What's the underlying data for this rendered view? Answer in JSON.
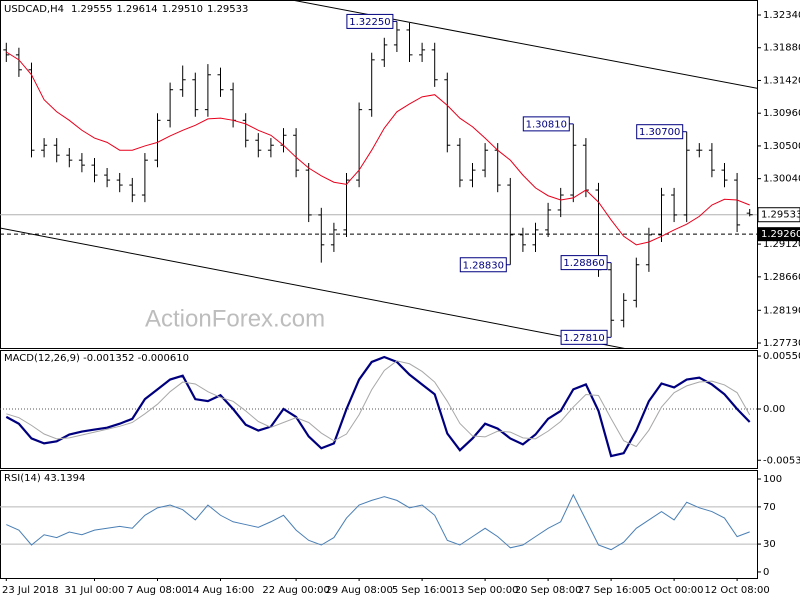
{
  "chart_data": [
    {
      "type": "ohlc",
      "title": "USDCAD,H4",
      "header_values": [
        "1.29555",
        "1.29614",
        "1.29510",
        "1.29533"
      ],
      "color": "#000000",
      "open": [
        1.3185,
        1.3178,
        1.3157,
        1.3044,
        1.3051,
        1.3037,
        1.303,
        1.3023,
        1.3009,
        1.3002,
        1.2995,
        1.2981,
        1.303,
        1.3086,
        1.3129,
        1.3143,
        1.3101,
        1.315,
        1.3129,
        1.3086,
        1.3058,
        1.3044,
        1.3051,
        1.3065,
        1.3016,
        1.2953,
        1.2911,
        1.2932,
        1.3002,
        1.3101,
        1.3171,
        1.3192,
        1.3213,
        1.3178,
        1.3185,
        1.3143,
        1.3051,
        1.3002,
        1.3016,
        1.3044,
        1.2995,
        1.2925,
        1.2911,
        1.2932,
        1.296,
        1.2981,
        1.3051,
        1.2988,
        1.2876,
        1.2805,
        1.2833,
        1.2883,
        1.2925,
        1.2981,
        1.2953,
        1.3044,
        1.3044,
        1.3016,
        1.3002,
        1.29555
      ],
      "high": [
        1.3195,
        1.3188,
        1.3167,
        1.3061,
        1.3061,
        1.3047,
        1.304,
        1.3033,
        1.3019,
        1.3012,
        1.3005,
        1.304,
        1.3096,
        1.3139,
        1.3163,
        1.3153,
        1.3165,
        1.316,
        1.3139,
        1.3096,
        1.3068,
        1.3061,
        1.3075,
        1.3075,
        1.3026,
        1.2963,
        1.2942,
        1.3012,
        1.3111,
        1.3181,
        1.3202,
        1.3225,
        1.3223,
        1.3195,
        1.3195,
        1.3153,
        1.3061,
        1.3026,
        1.3054,
        1.3054,
        1.3005,
        1.2935,
        1.2942,
        1.297,
        1.2991,
        1.3081,
        1.3061,
        1.2998,
        1.2886,
        1.2843,
        1.2893,
        1.2935,
        1.2991,
        1.2991,
        1.307,
        1.3054,
        1.3054,
        1.3026,
        1.3012,
        1.29614
      ],
      "low": [
        1.3168,
        1.3147,
        1.3034,
        1.3034,
        1.3027,
        1.302,
        1.3013,
        1.2999,
        1.2992,
        1.2985,
        1.2971,
        1.2971,
        1.302,
        1.3076,
        1.3119,
        1.3091,
        1.3091,
        1.3119,
        1.3076,
        1.3048,
        1.3034,
        1.3034,
        1.3041,
        1.3006,
        1.2943,
        1.2886,
        1.2901,
        1.2922,
        1.2992,
        1.3091,
        1.3161,
        1.3182,
        1.3168,
        1.3168,
        1.3133,
        1.3041,
        1.2992,
        1.2992,
        1.3006,
        1.2985,
        1.2883,
        1.2901,
        1.2901,
        1.2922,
        1.295,
        1.2971,
        1.2978,
        1.2866,
        1.2781,
        1.2795,
        1.2823,
        1.2873,
        1.2915,
        1.2943,
        1.2943,
        1.3034,
        1.3006,
        1.2992,
        1.2929,
        1.2951
      ],
      "close": [
        1.3178,
        1.3157,
        1.3044,
        1.3051,
        1.3037,
        1.303,
        1.3023,
        1.3009,
        1.3002,
        1.2995,
        1.2981,
        1.303,
        1.3086,
        1.3129,
        1.3143,
        1.3101,
        1.315,
        1.3129,
        1.3086,
        1.3058,
        1.3044,
        1.3051,
        1.3065,
        1.3016,
        1.2953,
        1.2911,
        1.2932,
        1.3002,
        1.3101,
        1.3171,
        1.3192,
        1.3213,
        1.3178,
        1.3185,
        1.3143,
        1.3051,
        1.3002,
        1.3016,
        1.3044,
        1.2995,
        1.2925,
        1.2911,
        1.2932,
        1.296,
        1.2981,
        1.3051,
        1.2988,
        1.2876,
        1.2805,
        1.2833,
        1.2883,
        1.2925,
        1.2981,
        1.2953,
        1.3044,
        1.3044,
        1.3016,
        1.3002,
        1.2939,
        1.29533
      ],
      "ma": {
        "color": "#e8001c",
        "values": [
          1.3182,
          1.3171,
          1.315,
          1.3115,
          1.3098,
          1.3086,
          1.3072,
          1.3061,
          1.3055,
          1.3044,
          1.3044,
          1.305,
          1.3055,
          1.3064,
          1.3072,
          1.3079,
          1.3088,
          1.3089,
          1.3086,
          1.3081,
          1.3072,
          1.3065,
          1.3051,
          1.3034,
          1.3019,
          1.3008,
          1.2999,
          1.2996,
          1.3016,
          1.3044,
          1.3075,
          1.3098,
          1.3109,
          1.3119,
          1.3122,
          1.3107,
          1.3089,
          1.3077,
          1.3061,
          1.3044,
          1.303,
          1.3009,
          1.2991,
          1.298,
          1.2974,
          1.2977,
          1.2988,
          1.2971,
          1.2946,
          1.2923,
          1.2911,
          1.2915,
          1.2923,
          1.2932,
          1.294,
          1.2951,
          1.2967,
          1.2975,
          1.2974,
          1.2967
        ]
      },
      "ylim": [
        1.2766,
        1.32551
      ],
      "yticks": [
        {
          "value": 1.3234,
          "label": "1.32340"
        },
        {
          "value": 1.3188,
          "label": "1.31880"
        },
        {
          "value": 1.3142,
          "label": "1.31420"
        },
        {
          "value": 1.3096,
          "label": "1.30960"
        },
        {
          "value": 1.305,
          "label": "1.30500"
        },
        {
          "value": 1.3004,
          "label": "1.30040"
        },
        {
          "value": 1.2912,
          "label": "1.29120"
        },
        {
          "value": 1.2866,
          "label": "1.28660"
        },
        {
          "value": 1.2819,
          "label": "1.28190"
        },
        {
          "value": 1.2773,
          "label": "1.27730"
        }
      ],
      "annotations": [
        {
          "value": 1.3225,
          "label": "1.32250"
        },
        {
          "value": 1.2886,
          "label": "1.28860"
        },
        {
          "value": 1.3081,
          "label": "1.30810"
        },
        {
          "value": 1.2883,
          "label": "1.28830"
        },
        {
          "value": 1.307,
          "label": "1.30700"
        },
        {
          "value": 1.2781,
          "label": "1.27810"
        }
      ],
      "price_line": {
        "value": 1.29533,
        "label": "1.29533"
      },
      "level_line": {
        "value": 1.2926,
        "label": "1.29260"
      },
      "trendlines": [
        {
          "x": [
            23,
            59
          ],
          "y": [
            1.3254,
            1.3133
          ]
        },
        {
          "x": [
            0,
            48
          ],
          "y": [
            1.2933,
            1.2769
          ]
        }
      ],
      "watermark": "ActionForex.com"
    },
    {
      "type": "line",
      "title": "MACD(12,26,9) -0.001352 -0.000610",
      "series": [
        {
          "color": "#00007f",
          "width": 2.2,
          "values": [
            -0.00082,
            -0.00153,
            -0.00306,
            -0.00357,
            -0.00336,
            -0.00265,
            -0.00234,
            -0.00214,
            -0.00194,
            -0.00153,
            -0.00102,
            0.00102,
            0.00204,
            0.00306,
            0.00346,
            0.00102,
            0.00082,
            0.00143,
            0,
            -0.00163,
            -0.00224,
            -0.00183,
            0,
            -0.00082,
            -0.00285,
            -0.00408,
            -0.00357,
            0,
            0.00306,
            0.00489,
            0.0054,
            0.00489,
            0.00357,
            0.00255,
            0.00153,
            -0.00255,
            -0.00428,
            -0.00306,
            -0.00153,
            -0.00204,
            -0.00306,
            -0.00367,
            -0.00265,
            -0.00102,
            -0.0002,
            0.00204,
            0.00255,
            -0.0002,
            -0.00489,
            -0.00459,
            -0.00224,
            0.00082,
            0.00265,
            0.00224,
            0.00306,
            0.00326,
            0.00255,
            0.00153,
            0,
            -0.001352
          ]
        },
        {
          "color": "#a8a8a8",
          "width": 1,
          "values": [
            -0.0005,
            -0.0009,
            -0.0017,
            -0.0026,
            -0.0031,
            -0.003,
            -0.0027,
            -0.0024,
            -0.0021,
            -0.0018,
            -0.0014,
            -0.0005,
            0.0005,
            0.0018,
            0.0028,
            0.0026,
            0.0018,
            0.0012,
            0.0008,
            -0.0002,
            -0.0013,
            -0.0019,
            -0.0014,
            -0.0009,
            -0.0014,
            -0.0025,
            -0.0033,
            -0.0026,
            -0.0006,
            0.002,
            0.004,
            0.005,
            0.0047,
            0.0039,
            0.0028,
            0.0008,
            -0.0015,
            -0.0028,
            -0.0029,
            -0.0023,
            -0.0024,
            -0.003,
            -0.0031,
            -0.0023,
            -0.0013,
            0.0002,
            0.0015,
            0.0014,
            -0.001,
            -0.0033,
            -0.0039,
            -0.0022,
            0.0002,
            0.0017,
            0.0024,
            0.0028,
            0.0029,
            0.0025,
            0.0017,
            -0.00061
          ]
        }
      ],
      "ylim": [
        -0.00613,
        0.00613
      ],
      "yticks": [
        0.005503,
        {
          "value": 0,
          "label": "0.00"
        },
        -0.005326
      ],
      "zero_line": true
    },
    {
      "type": "line",
      "title": "RSI(14) 43.1394",
      "series": [
        {
          "color": "#4a7fb5",
          "width": 1,
          "values": [
            51,
            45,
            29,
            40,
            37,
            43,
            40,
            45,
            47,
            49,
            47,
            61,
            69,
            72,
            67,
            56,
            72,
            61,
            54,
            51,
            48,
            54,
            61,
            45,
            34,
            29,
            37,
            58,
            72,
            77,
            81,
            77,
            69,
            72,
            61,
            34,
            29,
            38,
            47,
            38,
            26,
            29,
            38,
            47,
            54,
            83,
            56,
            29,
            24,
            32,
            47,
            56,
            65,
            56,
            75,
            69,
            65,
            58,
            38,
            43.1394
          ]
        }
      ],
      "ylim": [
        -6.5,
        109.7
      ],
      "yticks": [
        100,
        70,
        30,
        0
      ],
      "levels": [
        70,
        30
      ],
      "categories": [
        "23 Jul 2018",
        null,
        null,
        null,
        null,
        null,
        null,
        "31 Jul 00:00",
        null,
        null,
        null,
        null,
        "7 Aug 08:00",
        null,
        null,
        null,
        null,
        "14 Aug 16:00",
        null,
        null,
        null,
        null,
        null,
        "22 Aug 00:00",
        null,
        null,
        null,
        null,
        "29 Aug 08:00",
        null,
        null,
        null,
        null,
        "5 Sep 16:00",
        null,
        null,
        null,
        null,
        "13 Sep 00:00",
        null,
        null,
        null,
        null,
        "20 Sep 08:00",
        null,
        null,
        null,
        null,
        "27 Sep 16:00",
        null,
        null,
        null,
        null,
        "5 Oct 00:00",
        null,
        null,
        null,
        null,
        "12 Oct 08:00",
        null
      ]
    }
  ]
}
